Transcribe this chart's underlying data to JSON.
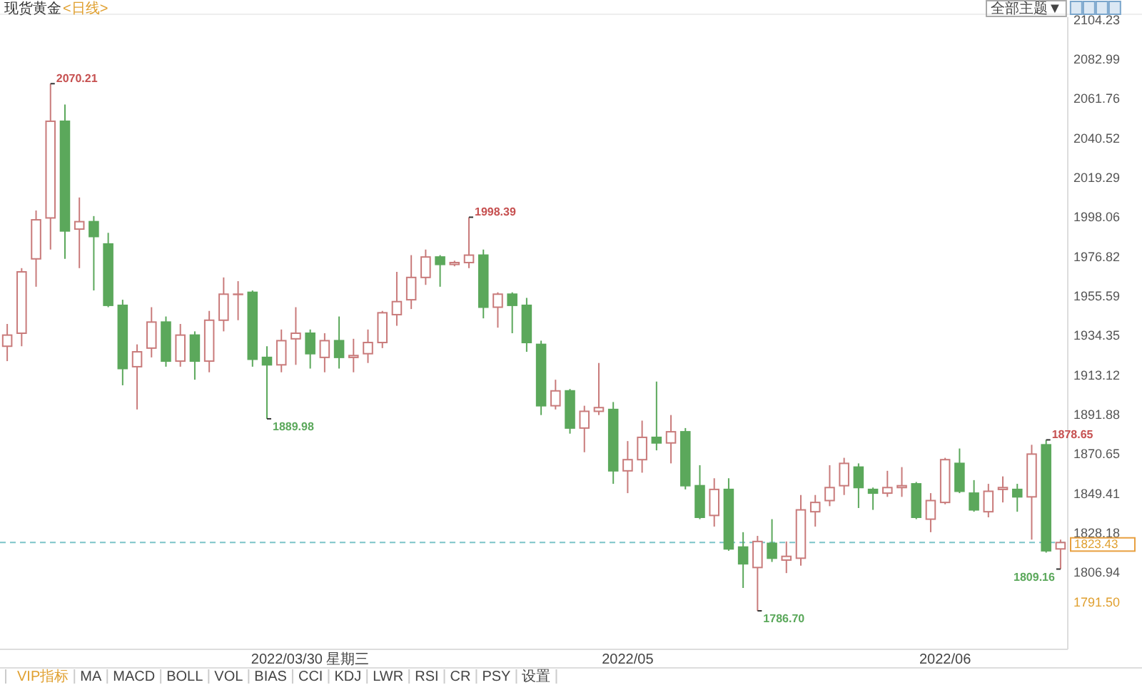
{
  "chart_data": {
    "type": "candlestick",
    "title": "现货黄金",
    "subtitle": "<日线>",
    "categories": [
      null,
      null,
      null,
      null,
      null,
      null,
      null,
      null,
      null,
      null,
      null,
      null,
      null,
      null,
      null,
      null,
      null,
      null,
      null,
      null,
      null,
      "2022/03/30 星期三",
      null,
      null,
      null,
      null,
      null,
      null,
      null,
      null,
      null,
      null,
      null,
      null,
      null,
      null,
      null,
      null,
      null,
      null,
      null,
      null,
      null,
      "2022/05",
      null,
      null,
      null,
      null,
      null,
      null,
      null,
      null,
      null,
      null,
      null,
      null,
      null,
      null,
      null,
      null,
      null,
      null,
      null,
      null,
      null,
      "2022/06",
      null,
      null,
      null,
      null,
      null,
      null,
      null,
      null
    ],
    "ohlc": [
      [
        1929,
        1941,
        1921,
        1935
      ],
      [
        1936,
        1971,
        1929,
        1969
      ],
      [
        1976,
        2002,
        1961,
        1997
      ],
      [
        1998,
        2070.21,
        1981,
        2050
      ],
      [
        2050,
        2059,
        1976,
        1991
      ],
      [
        1992,
        2009,
        1971,
        1996
      ],
      [
        1996,
        1999,
        1959,
        1988
      ],
      [
        1984,
        1990,
        1950,
        1951
      ],
      [
        1951,
        1954,
        1908,
        1917
      ],
      [
        1918,
        1930,
        1895,
        1926
      ],
      [
        1928,
        1950,
        1923,
        1942
      ],
      [
        1942,
        1945,
        1918,
        1921
      ],
      [
        1921,
        1941,
        1918,
        1935
      ],
      [
        1935,
        1937,
        1911,
        1921
      ],
      [
        1921,
        1948,
        1915,
        1943
      ],
      [
        1943,
        1966,
        1937,
        1957
      ],
      [
        1957,
        1964,
        1943,
        1957
      ],
      [
        1958,
        1959,
        1918,
        1922
      ],
      [
        1923,
        1929,
        1889.98,
        1919
      ],
      [
        1919,
        1938,
        1915,
        1932
      ],
      [
        1933,
        1950,
        1919,
        1936
      ],
      [
        1936,
        1938,
        1917,
        1925
      ],
      [
        1923,
        1936,
        1915,
        1932
      ],
      [
        1932,
        1945,
        1917,
        1923
      ],
      [
        1923,
        1933,
        1915,
        1924
      ],
      [
        1925,
        1938,
        1920,
        1931
      ],
      [
        1931,
        1948,
        1928,
        1947
      ],
      [
        1946,
        1969,
        1940,
        1953
      ],
      [
        1954,
        1978,
        1949,
        1966
      ],
      [
        1966,
        1981,
        1962,
        1977
      ],
      [
        1977,
        1978,
        1961,
        1973
      ],
      [
        1973,
        1975,
        1972,
        1974
      ],
      [
        1974,
        1998.39,
        1971,
        1978
      ],
      [
        1978,
        1981,
        1944,
        1950
      ],
      [
        1950,
        1958,
        1939,
        1957
      ],
      [
        1957,
        1958,
        1936,
        1951
      ],
      [
        1951,
        1955,
        1926,
        1931
      ],
      [
        1930,
        1932,
        1892,
        1897
      ],
      [
        1897,
        1911,
        1895,
        1905
      ],
      [
        1905,
        1906,
        1882,
        1885
      ],
      [
        1885,
        1897,
        1872,
        1894
      ],
      [
        1894,
        1920,
        1892,
        1896
      ],
      [
        1895,
        1899,
        1855,
        1862
      ],
      [
        1862,
        1878,
        1850,
        1868
      ],
      [
        1868,
        1889,
        1861,
        1880
      ],
      [
        1880,
        1910,
        1873,
        1877
      ],
      [
        1877,
        1892,
        1866,
        1883
      ],
      [
        1883,
        1885,
        1852,
        1854
      ],
      [
        1854,
        1865,
        1836,
        1837
      ],
      [
        1838,
        1858,
        1832,
        1852
      ],
      [
        1852,
        1858,
        1819,
        1820
      ],
      [
        1821,
        1829,
        1799,
        1812
      ],
      [
        1810,
        1827,
        1786.7,
        1824
      ],
      [
        1823,
        1836,
        1813,
        1815
      ],
      [
        1814,
        1824,
        1807,
        1816
      ],
      [
        1815,
        1849,
        1811,
        1841
      ],
      [
        1840,
        1849,
        1832,
        1845
      ],
      [
        1846,
        1865,
        1843,
        1853
      ],
      [
        1854,
        1869,
        1849,
        1866
      ],
      [
        1864,
        1866,
        1842,
        1853
      ],
      [
        1852,
        1853,
        1841,
        1850
      ],
      [
        1850,
        1862,
        1848,
        1853
      ],
      [
        1853,
        1864,
        1848,
        1854
      ],
      [
        1855,
        1856,
        1836,
        1837
      ],
      [
        1836,
        1850,
        1829,
        1846
      ],
      [
        1845,
        1869,
        1844,
        1868
      ],
      [
        1866,
        1874,
        1850,
        1851
      ],
      [
        1850,
        1857,
        1840,
        1841
      ],
      [
        1840,
        1855,
        1837,
        1851
      ],
      [
        1852,
        1859,
        1845,
        1853
      ],
      [
        1852,
        1855,
        1840,
        1848
      ],
      [
        1848,
        1876,
        1825,
        1871
      ],
      [
        1876,
        1878.65,
        1818,
        1819
      ],
      [
        1820,
        1825,
        1809.16,
        1823.43
      ]
    ],
    "colors": [
      "#c97b7b",
      "#c97b7b",
      "#c97b7b",
      "#c97b7b",
      "#5ba85b",
      "#c97b7b",
      "#5ba85b",
      "#5ba85b",
      "#5ba85b",
      "#c97b7b",
      "#c97b7b",
      "#5ba85b",
      "#c97b7b",
      "#5ba85b",
      "#c97b7b",
      "#c97b7b",
      "#c97b7b",
      "#5ba85b",
      "#5ba85b",
      "#c97b7b",
      "#c97b7b",
      "#5ba85b",
      "#c97b7b",
      "#5ba85b",
      "#c97b7b",
      "#c97b7b",
      "#c97b7b",
      "#c97b7b",
      "#c97b7b",
      "#c97b7b",
      "#5ba85b",
      "#c97b7b",
      "#c97b7b",
      "#5ba85b",
      "#c97b7b",
      "#5ba85b",
      "#5ba85b",
      "#5ba85b",
      "#c97b7b",
      "#5ba85b",
      "#c97b7b",
      "#c97b7b",
      "#5ba85b",
      "#c97b7b",
      "#c97b7b",
      "#5ba85b",
      "#c97b7b",
      "#5ba85b",
      "#5ba85b",
      "#c97b7b",
      "#5ba85b",
      "#5ba85b",
      "#c97b7b",
      "#5ba85b",
      "#c97b7b",
      "#c97b7b",
      "#c97b7b",
      "#c97b7b",
      "#c97b7b",
      "#5ba85b",
      "#5ba85b",
      "#c97b7b",
      "#c97b7b",
      "#5ba85b",
      "#c97b7b",
      "#c97b7b",
      "#5ba85b",
      "#5ba85b",
      "#c97b7b",
      "#c97b7b",
      "#5ba85b",
      "#c97b7b",
      "#5ba85b",
      "#c97b7b"
    ],
    "ylim": [
      1766,
      2106
    ],
    "yticks": [
      {
        "value": 2104.23,
        "label": "2104.23"
      },
      {
        "value": 2082.99,
        "label": "2082.99"
      },
      {
        "value": 2061.76,
        "label": "2061.76"
      },
      {
        "value": 2040.52,
        "label": "2040.52"
      },
      {
        "value": 2019.29,
        "label": "2019.29"
      },
      {
        "value": 1998.06,
        "label": "1998.06"
      },
      {
        "value": 1976.82,
        "label": "1976.82"
      },
      {
        "value": 1955.59,
        "label": "1955.59"
      },
      {
        "value": 1934.35,
        "label": "1934.35"
      },
      {
        "value": 1913.12,
        "label": "1913.12"
      },
      {
        "value": 1891.88,
        "label": "1891.88"
      },
      {
        "value": 1870.65,
        "label": "1870.65"
      },
      {
        "value": 1849.41,
        "label": "1849.41"
      },
      {
        "value": 1828.18,
        "label": "1828.18"
      },
      {
        "value": 1806.94,
        "label": "1806.94"
      }
    ],
    "ref_lines": [
      {
        "axis": "y",
        "value": 1823.43,
        "label": "1823.43",
        "color": "#7cc4c8",
        "line_style": "dashed"
      }
    ],
    "annotations": [
      "2070.21",
      "1998.39",
      "1889.98",
      "1786.70",
      "1878.65",
      "1809.16",
      "1791.50",
      "全部主题▼",
      "VIP指标",
      "MA",
      "MACD",
      "BOLL",
      "VOL",
      "BIAS",
      "CCI",
      "KDJ",
      "LWR",
      "RSI",
      "CR",
      "PSY",
      "设置"
    ]
  }
}
